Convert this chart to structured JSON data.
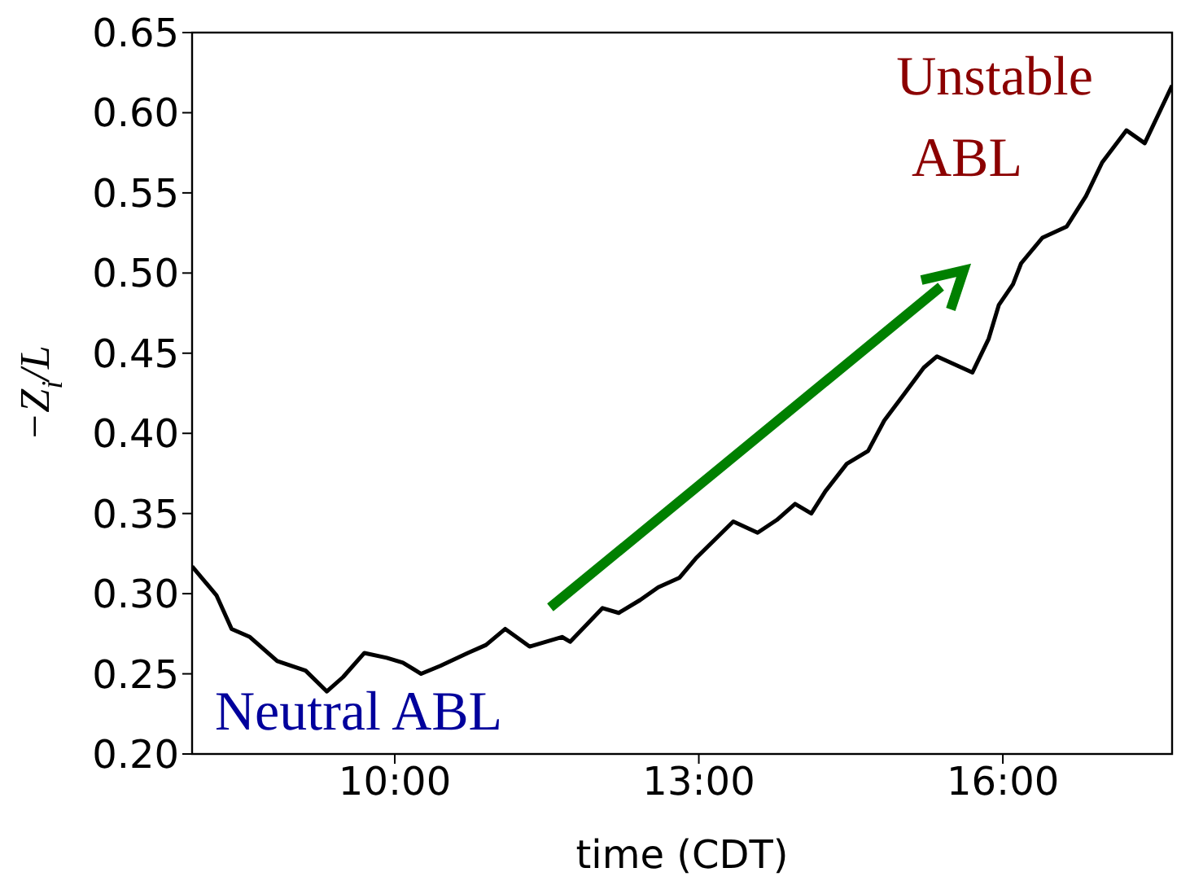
{
  "chart_data": {
    "type": "line",
    "xlabel": "time (CDT)",
    "ylabel": "−Z$_{i}$/L",
    "x": [
      8.0,
      8.24,
      8.39,
      8.57,
      8.84,
      9.12,
      9.33,
      9.49,
      9.7,
      9.92,
      10.08,
      10.26,
      10.45,
      10.72,
      10.9,
      11.09,
      11.33,
      11.65,
      11.73,
      12.05,
      12.21,
      12.42,
      12.6,
      12.81,
      12.97,
      13.34,
      13.58,
      13.77,
      13.95,
      14.11,
      14.25,
      14.46,
      14.67,
      14.83,
      15.02,
      15.22,
      15.35,
      15.7,
      15.86,
      15.96,
      16.1,
      16.18,
      16.39,
      16.63,
      16.82,
      16.98,
      17.22,
      17.4,
      17.67
    ],
    "series": [
      {
        "color": "#000000",
        "values": [
          0.317,
          0.299,
          0.278,
          0.273,
          0.258,
          0.252,
          0.239,
          0.248,
          0.263,
          0.26,
          0.257,
          0.25,
          0.255,
          0.263,
          0.268,
          0.278,
          0.267,
          0.273,
          0.27,
          0.291,
          0.288,
          0.296,
          0.304,
          0.31,
          0.322,
          0.345,
          0.338,
          0.346,
          0.356,
          0.35,
          0.364,
          0.381,
          0.389,
          0.408,
          0.424,
          0.441,
          0.448,
          0.438,
          0.459,
          0.48,
          0.493,
          0.506,
          0.522,
          0.529,
          0.548,
          0.569,
          0.589,
          0.581,
          0.617
        ]
      }
    ],
    "xlim": [
      8.0,
      17.67
    ],
    "xticks": [
      {
        "value": 10,
        "label": "10:00"
      },
      {
        "value": 13,
        "label": "13:00"
      },
      {
        "value": 16,
        "label": "16:00"
      }
    ],
    "ylim": [
      0.2,
      0.65
    ],
    "yticks": [
      {
        "value": 0.2,
        "label": "0.20"
      },
      0.25,
      {
        "value": 0.3,
        "label": "0.30"
      },
      0.35,
      {
        "value": 0.4,
        "label": "0.40"
      },
      0.45,
      {
        "value": 0.5,
        "label": "0.50"
      },
      0.55,
      {
        "value": 0.6,
        "label": "0.60"
      },
      0.65
    ],
    "annotations": [
      "Neutral ABL",
      "Unstable ABL"
    ],
    "grid": false,
    "legend": false,
    "marker": "none",
    "line_style": "solid"
  }
}
